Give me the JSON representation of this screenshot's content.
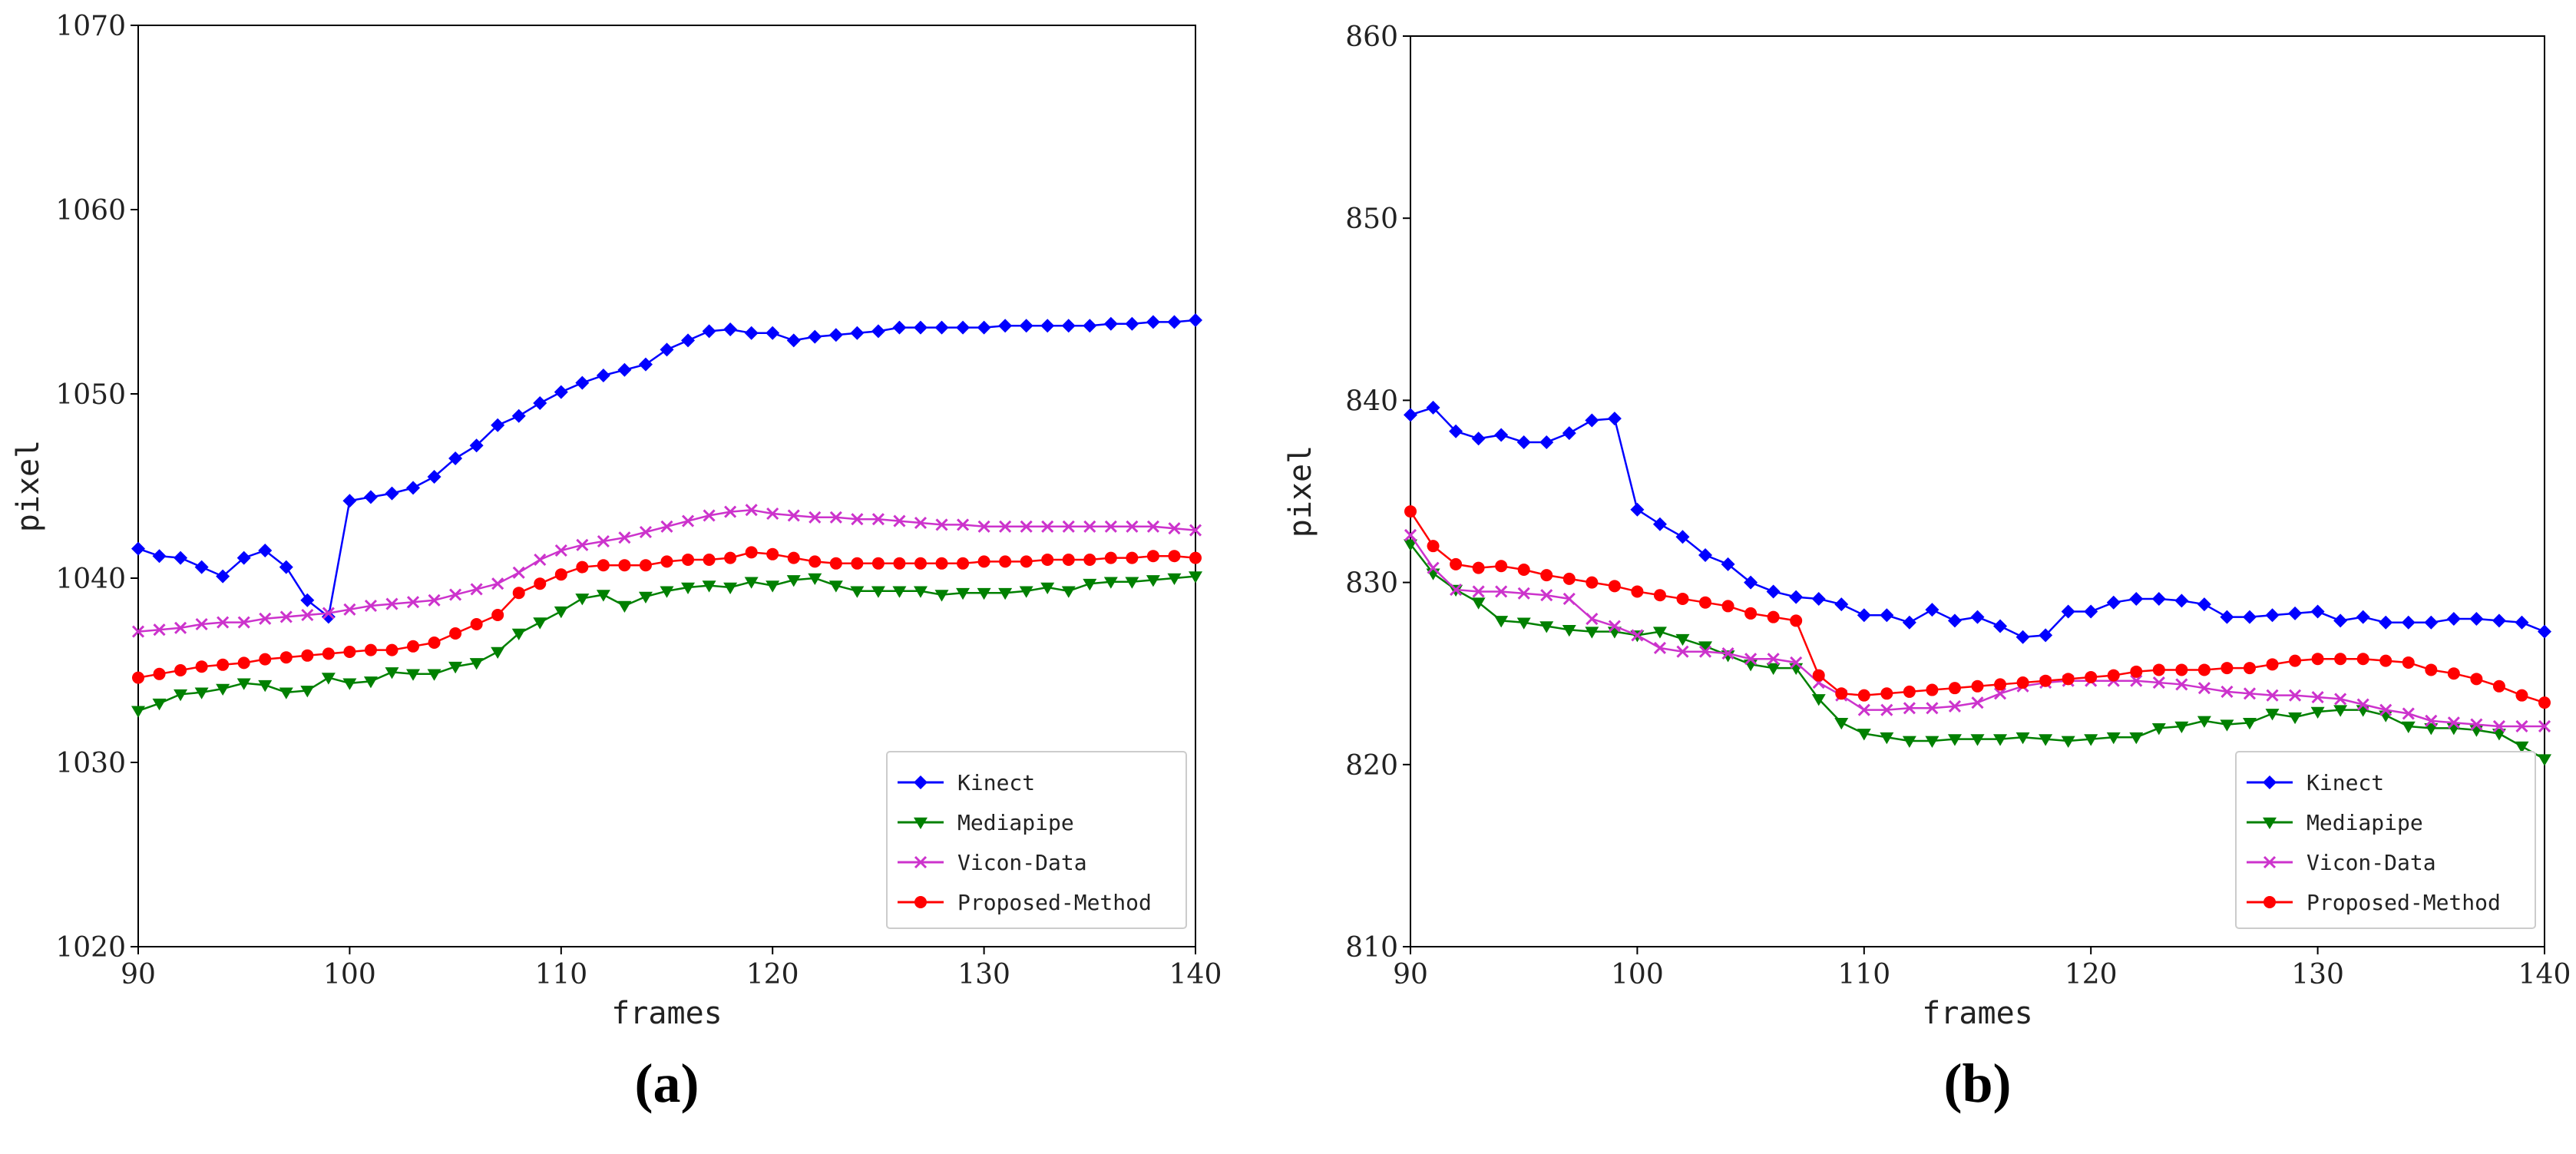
{
  "chart_data": [
    {
      "type": "line",
      "panel_label": "(a)",
      "xlabel": "frames",
      "ylabel": "pixel",
      "xlim": [
        90,
        140
      ],
      "ylim": [
        1020,
        1070
      ],
      "xticks": [
        90,
        100,
        110,
        120,
        130,
        140
      ],
      "yticks": [
        1020,
        1030,
        1040,
        1050,
        1060,
        1070
      ],
      "legend_position": "bottom-right",
      "x_start": 90,
      "x_step": 1,
      "series": [
        {
          "name": "Kinect",
          "color": "#0000ff",
          "marker": "diamond",
          "values": [
            1041.6,
            1041.2,
            1041.1,
            1040.6,
            1040.1,
            1041.1,
            1041.5,
            1040.6,
            1038.8,
            1037.9,
            1044.2,
            1044.4,
            1044.6,
            1044.9,
            1045.5,
            1046.5,
            1047.2,
            1048.3,
            1048.8,
            1049.5,
            1050.1,
            1050.6,
            1051.0,
            1051.3,
            1051.6,
            1052.4,
            1052.9,
            1053.4,
            1053.5,
            1053.3,
            1053.3,
            1052.9,
            1053.1,
            1053.2,
            1053.3,
            1053.4,
            1053.6,
            1053.6,
            1053.6,
            1053.6,
            1053.6,
            1053.7,
            1053.7,
            1053.7,
            1053.7,
            1053.7,
            1053.8,
            1053.8,
            1053.9,
            1053.9,
            1054.0
          ]
        },
        {
          "name": "Mediapipe",
          "color": "#008000",
          "marker": "triangle-down",
          "values": [
            1032.8,
            1033.2,
            1033.7,
            1033.8,
            1034.0,
            1034.3,
            1034.2,
            1033.8,
            1033.9,
            1034.6,
            1034.3,
            1034.4,
            1034.9,
            1034.8,
            1034.8,
            1035.2,
            1035.4,
            1036.0,
            1037.0,
            1037.6,
            1038.2,
            1038.9,
            1039.1,
            1038.5,
            1039.0,
            1039.3,
            1039.5,
            1039.6,
            1039.5,
            1039.8,
            1039.6,
            1039.9,
            1040.0,
            1039.6,
            1039.3,
            1039.3,
            1039.3,
            1039.3,
            1039.1,
            1039.2,
            1039.2,
            1039.2,
            1039.3,
            1039.5,
            1039.3,
            1039.7,
            1039.8,
            1039.8,
            1039.9,
            1040.0,
            1040.1
          ]
        },
        {
          "name": "Vicon-Data",
          "color": "#cc33cc",
          "marker": "x",
          "values": [
            1037.1,
            1037.2,
            1037.3,
            1037.5,
            1037.6,
            1037.6,
            1037.8,
            1037.9,
            1038.0,
            1038.1,
            1038.3,
            1038.5,
            1038.6,
            1038.7,
            1038.8,
            1039.1,
            1039.4,
            1039.7,
            1040.3,
            1041.0,
            1041.5,
            1041.8,
            1042.0,
            1042.2,
            1042.5,
            1042.8,
            1043.1,
            1043.4,
            1043.6,
            1043.7,
            1043.5,
            1043.4,
            1043.3,
            1043.3,
            1043.2,
            1043.2,
            1043.1,
            1043.0,
            1042.9,
            1042.9,
            1042.8,
            1042.8,
            1042.8,
            1042.8,
            1042.8,
            1042.8,
            1042.8,
            1042.8,
            1042.8,
            1042.7,
            1042.6
          ]
        },
        {
          "name": "Proposed-Method",
          "color": "#ff0000",
          "marker": "circle",
          "values": [
            1034.6,
            1034.8,
            1035.0,
            1035.2,
            1035.3,
            1035.4,
            1035.6,
            1035.7,
            1035.8,
            1035.9,
            1036.0,
            1036.1,
            1036.1,
            1036.3,
            1036.5,
            1037.0,
            1037.5,
            1038.0,
            1039.2,
            1039.7,
            1040.2,
            1040.6,
            1040.7,
            1040.7,
            1040.7,
            1040.9,
            1041.0,
            1041.0,
            1041.1,
            1041.4,
            1041.3,
            1041.1,
            1040.9,
            1040.8,
            1040.8,
            1040.8,
            1040.8,
            1040.8,
            1040.8,
            1040.8,
            1040.9,
            1040.9,
            1040.9,
            1041.0,
            1041.0,
            1041.0,
            1041.1,
            1041.1,
            1041.2,
            1041.2,
            1041.1
          ]
        }
      ]
    },
    {
      "type": "line",
      "panel_label": "(b)",
      "xlabel": "frames",
      "ylabel": "pixel",
      "xlim": [
        90,
        140
      ],
      "ylim": [
        810,
        860
      ],
      "xticks": [
        90,
        100,
        110,
        120,
        130,
        140
      ],
      "yticks": [
        810,
        820,
        830,
        840,
        850,
        860
      ],
      "legend_position": "bottom-right",
      "x_start": 90,
      "x_step": 1,
      "series": [
        {
          "name": "Kinect",
          "color": "#0000ff",
          "marker": "diamond",
          "values": [
            839.2,
            839.6,
            838.3,
            837.9,
            838.1,
            837.7,
            837.7,
            838.2,
            838.9,
            839.0,
            834.0,
            833.2,
            832.5,
            831.5,
            831.0,
            830.0,
            829.5,
            829.2,
            829.1,
            828.8,
            828.2,
            828.2,
            827.8,
            828.5,
            827.9,
            828.1,
            827.6,
            827.0,
            827.1,
            828.4,
            828.4,
            828.9,
            829.1,
            829.1,
            829.0,
            828.8,
            828.1,
            828.1,
            828.2,
            828.3,
            828.4,
            827.9,
            828.1,
            827.8,
            827.8,
            827.8,
            828.0,
            828.0,
            827.9,
            827.8,
            827.3
          ]
        },
        {
          "name": "Mediapipe",
          "color": "#008000",
          "marker": "triangle-down",
          "values": [
            832.1,
            830.5,
            829.6,
            828.9,
            827.9,
            827.8,
            827.6,
            827.4,
            827.3,
            827.3,
            827.1,
            827.3,
            826.9,
            826.5,
            826.0,
            825.5,
            825.3,
            825.3,
            823.6,
            822.3,
            821.7,
            821.5,
            821.3,
            821.3,
            821.4,
            821.4,
            821.4,
            821.5,
            821.4,
            821.3,
            821.4,
            821.5,
            821.5,
            822.0,
            822.1,
            822.4,
            822.2,
            822.3,
            822.8,
            822.6,
            822.9,
            823.0,
            823.0,
            822.7,
            822.1,
            822.0,
            822.0,
            821.9,
            821.7,
            821.0,
            820.3
          ]
        },
        {
          "name": "Vicon-Data",
          "color": "#cc33cc",
          "marker": "x",
          "values": [
            832.6,
            830.8,
            829.6,
            829.5,
            829.5,
            829.4,
            829.3,
            829.1,
            828.0,
            827.6,
            827.1,
            826.4,
            826.2,
            826.2,
            826.1,
            825.8,
            825.8,
            825.6,
            824.5,
            823.8,
            823.0,
            823.0,
            823.1,
            823.1,
            823.2,
            823.4,
            823.9,
            824.3,
            824.5,
            824.6,
            824.6,
            824.6,
            824.6,
            824.5,
            824.4,
            824.2,
            824.0,
            823.9,
            823.8,
            823.8,
            823.7,
            823.6,
            823.3,
            823.0,
            822.8,
            822.4,
            822.3,
            822.2,
            822.1,
            822.1,
            822.1
          ]
        },
        {
          "name": "Proposed-Method",
          "color": "#ff0000",
          "marker": "circle",
          "values": [
            833.9,
            832.0,
            831.0,
            830.8,
            830.9,
            830.7,
            830.4,
            830.2,
            830.0,
            829.8,
            829.5,
            829.3,
            829.1,
            828.9,
            828.7,
            828.3,
            828.1,
            827.9,
            824.9,
            823.9,
            823.8,
            823.9,
            824.0,
            824.1,
            824.2,
            824.3,
            824.4,
            824.5,
            824.6,
            824.7,
            824.8,
            824.9,
            825.1,
            825.2,
            825.2,
            825.2,
            825.3,
            825.3,
            825.5,
            825.7,
            825.8,
            825.8,
            825.8,
            825.7,
            825.6,
            825.2,
            825.0,
            824.7,
            824.3,
            823.8,
            823.4
          ]
        }
      ]
    }
  ]
}
